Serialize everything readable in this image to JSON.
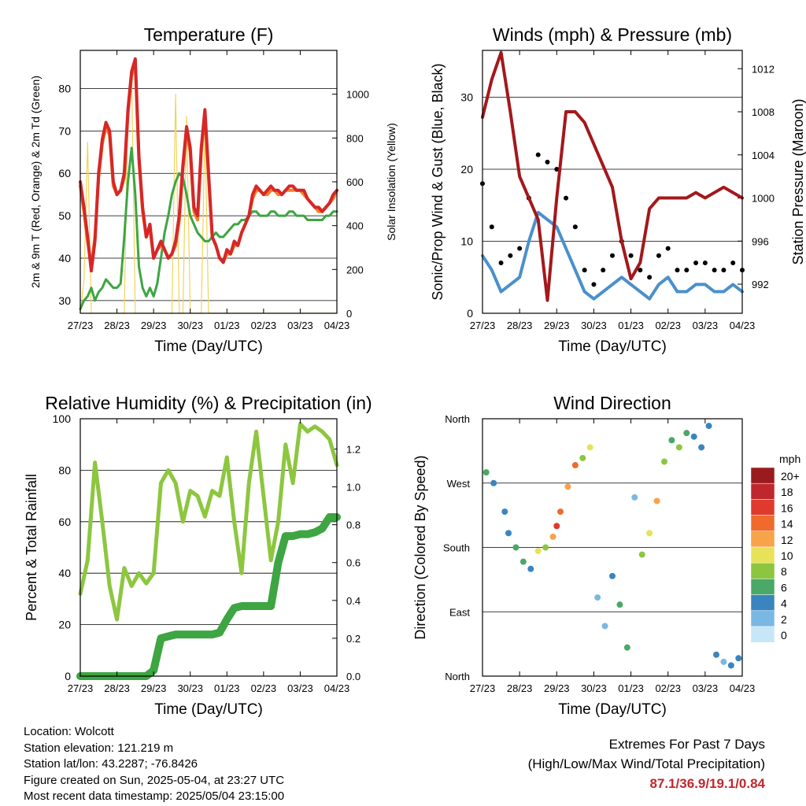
{
  "colors": {
    "temp_2m": "#d62728",
    "temp_9m": "#f0822a",
    "dewpoint": "#3da542",
    "solar": "#f2d35c",
    "wind_sonic": "#4a90cc",
    "gust": "#000000",
    "pressure": "#a3181c",
    "rh": "#8dc63f",
    "precip": "#3da542"
  },
  "x_ticks": [
    "27/23",
    "28/23",
    "29/23",
    "30/23",
    "01/23",
    "02/23",
    "03/23",
    "04/23"
  ],
  "xlabel": "Time (Day/UTC)",
  "chart_data": [
    {
      "id": "temperature",
      "type": "line",
      "title": "Temperature (F)",
      "xlabel": "Time (Day/UTC)",
      "ylabel": "2m & 9m T (Red, Orange) & 2m Td (Green)",
      "y2label": "Solar Insolation (Yellow)",
      "ylim": [
        27,
        89
      ],
      "yticks": [
        30,
        40,
        50,
        60,
        70,
        80
      ],
      "y2lim": [
        0,
        1200
      ],
      "y2ticks": [
        0,
        200,
        400,
        600,
        800,
        1000
      ],
      "x": [
        0,
        0.1,
        0.2,
        0.3,
        0.4,
        0.5,
        0.6,
        0.7,
        0.8,
        0.9,
        1.0,
        1.1,
        1.2,
        1.3,
        1.4,
        1.5,
        1.6,
        1.7,
        1.8,
        1.9,
        2.0,
        2.1,
        2.2,
        2.3,
        2.4,
        2.5,
        2.6,
        2.7,
        2.8,
        2.9,
        3.0,
        3.1,
        3.2,
        3.3,
        3.4,
        3.5,
        3.6,
        3.7,
        3.8,
        3.9,
        4.0,
        4.1,
        4.2,
        4.3,
        4.4,
        4.5,
        4.6,
        4.7,
        4.8,
        4.9,
        5.0,
        5.1,
        5.2,
        5.3,
        5.4,
        5.5,
        5.6,
        5.7,
        5.8,
        5.9,
        6.0,
        6.1,
        6.2,
        6.3,
        6.4,
        6.5,
        6.6,
        6.7,
        6.8,
        6.9,
        7.0
      ],
      "series": [
        {
          "values": [
            58,
            52,
            45,
            37,
            44,
            60,
            68,
            72,
            70,
            58,
            55,
            56,
            60,
            75,
            84,
            87,
            64,
            52,
            45,
            48,
            40,
            42,
            44,
            42,
            40,
            41,
            44,
            50,
            62,
            71,
            66,
            52,
            50,
            66,
            75,
            60,
            45,
            43,
            40,
            39,
            42,
            41,
            44,
            43,
            46,
            48,
            50,
            55,
            57,
            56,
            55,
            56,
            57,
            56,
            56,
            55,
            56,
            57,
            57,
            56,
            56,
            56,
            54,
            53,
            52,
            52,
            51,
            52,
            53,
            55,
            56
          ]
        },
        {
          "values": [
            57,
            51,
            44,
            38,
            45,
            59,
            67,
            71,
            69,
            57,
            55,
            56,
            59,
            74,
            83,
            86,
            63,
            51,
            45,
            47,
            40,
            42,
            43,
            42,
            40,
            41,
            43,
            49,
            61,
            70,
            65,
            51,
            49,
            65,
            74,
            59,
            45,
            43,
            40,
            39,
            41,
            41,
            43,
            43,
            46,
            48,
            50,
            54,
            56,
            56,
            55,
            55,
            56,
            56,
            55,
            55,
            56,
            56,
            56,
            56,
            56,
            55,
            54,
            53,
            52,
            51,
            51,
            52,
            53,
            54,
            56
          ]
        },
        {
          "values": [
            28,
            30,
            31,
            33,
            30,
            32,
            33,
            35,
            34,
            33,
            33,
            34,
            45,
            58,
            66,
            55,
            38,
            33,
            31,
            33,
            31,
            34,
            40,
            46,
            50,
            55,
            58,
            60,
            59,
            55,
            50,
            48,
            46,
            45,
            44,
            44,
            45,
            46,
            45,
            45,
            46,
            47,
            48,
            48,
            49,
            49,
            50,
            51,
            51,
            50,
            50,
            50,
            51,
            51,
            50,
            50,
            50,
            51,
            51,
            50,
            50,
            50,
            49,
            49,
            49,
            49,
            49,
            50,
            50,
            51,
            51
          ]
        },
        {
          "values": [
            0,
            150,
            780,
            0,
            0,
            0,
            0,
            0,
            0,
            0,
            0,
            0,
            0,
            950,
            1100,
            0,
            0,
            0,
            0,
            0,
            0,
            0,
            0,
            0,
            0,
            0,
            1000,
            0,
            0,
            900,
            0,
            0,
            0,
            0,
            850,
            0,
            0,
            0,
            0,
            0,
            0,
            0,
            0,
            0,
            0,
            0,
            0,
            0,
            0,
            0,
            0,
            0,
            0,
            0,
            0,
            0,
            0,
            0,
            0,
            0,
            0,
            0,
            0,
            0,
            0,
            0,
            0,
            0,
            0,
            0,
            0
          ]
        }
      ]
    },
    {
      "id": "winds",
      "type": "scatter",
      "title": "Winds (mph) & Pressure (mb)",
      "xlabel": "Time (Day/UTC)",
      "ylabel": "Sonic/Prop Wind & Gust (Blue, Black)",
      "y2label": "Station Pressure (Maroon)",
      "ylim": [
        0,
        36.5
      ],
      "yticks": [
        0,
        10,
        20,
        30
      ],
      "y2lim": [
        989.3,
        1013.7
      ],
      "y2ticks": [
        992,
        996,
        1000,
        1004,
        1008,
        1012
      ],
      "x": [
        0,
        0.25,
        0.5,
        0.75,
        1.0,
        1.25,
        1.5,
        1.75,
        2.0,
        2.25,
        2.5,
        2.75,
        3.0,
        3.25,
        3.5,
        3.75,
        4.0,
        4.25,
        4.5,
        4.75,
        5.0,
        5.25,
        5.5,
        5.75,
        6.0,
        6.25,
        6.5,
        6.75,
        7.0
      ],
      "series": [
        {
          "values": [
            8,
            6,
            3,
            4,
            5,
            10,
            14,
            13,
            12,
            9,
            6,
            3,
            2,
            3,
            4,
            5,
            4,
            3,
            2,
            4,
            5,
            3,
            3,
            4,
            4,
            3,
            3,
            4,
            3
          ]
        },
        {
          "values": [
            18,
            12,
            7,
            8,
            9,
            16,
            22,
            21,
            20,
            16,
            12,
            6,
            4,
            6,
            8,
            10,
            8,
            6,
            5,
            8,
            9,
            6,
            6,
            7,
            7,
            6,
            6,
            7,
            6
          ]
        },
        {
          "values": [
            1007.5,
            1011,
            1013.5,
            1008,
            1002,
            1000,
            998,
            990.5,
            1000,
            1008,
            1008,
            1007,
            1005,
            1003,
            1001,
            996,
            992.5,
            994,
            999,
            1000,
            1000,
            1000,
            1000,
            1000.5,
            1000,
            1000.5,
            1001,
            1000.5,
            1000
          ]
        }
      ]
    },
    {
      "id": "humidity",
      "type": "line",
      "title": "Relative Humidity (%) & Precipitation (in)",
      "xlabel": "Time (Day/UTC)",
      "ylabel": "Percent & Total Rainfall",
      "ylim": [
        0,
        100
      ],
      "yticks": [
        0,
        20,
        40,
        60,
        80,
        100
      ],
      "y2lim": [
        0,
        1.36
      ],
      "y2ticks": [
        0.0,
        0.2,
        0.4,
        0.6,
        0.8,
        1.0,
        1.2
      ],
      "x": [
        0,
        0.2,
        0.4,
        0.6,
        0.8,
        1.0,
        1.2,
        1.4,
        1.6,
        1.8,
        2.0,
        2.2,
        2.4,
        2.6,
        2.8,
        3.0,
        3.2,
        3.4,
        3.6,
        3.8,
        4.0,
        4.2,
        4.4,
        4.6,
        4.8,
        5.0,
        5.2,
        5.4,
        5.6,
        5.8,
        6.0,
        6.2,
        6.4,
        6.6,
        6.8,
        7.0
      ],
      "series": [
        {
          "values": [
            32,
            45,
            83,
            60,
            35,
            22,
            42,
            35,
            40,
            36,
            40,
            75,
            80,
            75,
            60,
            72,
            70,
            62,
            72,
            70,
            85,
            60,
            40,
            75,
            95,
            70,
            45,
            60,
            90,
            75,
            98,
            95,
            97,
            95,
            92,
            82
          ]
        },
        {
          "values": [
            0,
            0,
            0,
            0,
            0,
            0,
            0,
            0,
            0,
            0,
            0.03,
            0.2,
            0.21,
            0.22,
            0.22,
            0.22,
            0.22,
            0.22,
            0.22,
            0.23,
            0.3,
            0.36,
            0.37,
            0.37,
            0.37,
            0.37,
            0.37,
            0.6,
            0.74,
            0.74,
            0.75,
            0.75,
            0.76,
            0.78,
            0.84,
            0.84
          ]
        }
      ]
    },
    {
      "id": "direction",
      "type": "scatter",
      "title": "Wind Direction",
      "xlabel": "Time (Day/UTC)",
      "ylabel": "Direction (Colored By Speed)",
      "ylim": [
        0,
        360
      ],
      "yticks": [
        "North",
        "East",
        "South",
        "West",
        "North"
      ],
      "legend_title": "mph",
      "legend_labels": [
        "20+",
        "18",
        "16",
        "14",
        "12",
        "10",
        "8",
        "6",
        "4",
        "2",
        "0"
      ],
      "legend_colors": [
        "#9a1b1e",
        "#c0272d",
        "#df3a2e",
        "#ef6a2c",
        "#f6a34a",
        "#e8e15a",
        "#8cc63f",
        "#4aa868",
        "#3a85c0",
        "#7ab8e4",
        "#c7e6f7"
      ],
      "points": [
        {
          "x": 0.1,
          "y": 285,
          "s": 6
        },
        {
          "x": 0.3,
          "y": 270,
          "s": 4
        },
        {
          "x": 0.6,
          "y": 230,
          "s": 3
        },
        {
          "x": 0.7,
          "y": 200,
          "s": 4
        },
        {
          "x": 0.9,
          "y": 180,
          "s": 6
        },
        {
          "x": 1.1,
          "y": 160,
          "s": 6
        },
        {
          "x": 1.3,
          "y": 150,
          "s": 4
        },
        {
          "x": 1.5,
          "y": 175,
          "s": 10
        },
        {
          "x": 1.7,
          "y": 180,
          "s": 8
        },
        {
          "x": 1.9,
          "y": 195,
          "s": 12
        },
        {
          "x": 2.0,
          "y": 210,
          "s": 16
        },
        {
          "x": 2.1,
          "y": 230,
          "s": 14
        },
        {
          "x": 2.3,
          "y": 265,
          "s": 12
        },
        {
          "x": 2.5,
          "y": 295,
          "s": 14
        },
        {
          "x": 2.7,
          "y": 305,
          "s": 8
        },
        {
          "x": 2.9,
          "y": 320,
          "s": 10
        },
        {
          "x": 3.1,
          "y": 110,
          "s": 2
        },
        {
          "x": 3.3,
          "y": 70,
          "s": 2
        },
        {
          "x": 3.5,
          "y": 140,
          "s": 4
        },
        {
          "x": 3.7,
          "y": 100,
          "s": 6
        },
        {
          "x": 3.9,
          "y": 40,
          "s": 6
        },
        {
          "x": 4.1,
          "y": 250,
          "s": 2
        },
        {
          "x": 4.3,
          "y": 170,
          "s": 8
        },
        {
          "x": 4.5,
          "y": 200,
          "s": 10
        },
        {
          "x": 4.7,
          "y": 245,
          "s": 12
        },
        {
          "x": 4.9,
          "y": 300,
          "s": 8
        },
        {
          "x": 5.1,
          "y": 330,
          "s": 6
        },
        {
          "x": 5.3,
          "y": 320,
          "s": 8
        },
        {
          "x": 5.5,
          "y": 340,
          "s": 6
        },
        {
          "x": 5.7,
          "y": 335,
          "s": 4
        },
        {
          "x": 5.9,
          "y": 320,
          "s": 4
        },
        {
          "x": 6.1,
          "y": 350,
          "s": 4
        },
        {
          "x": 6.3,
          "y": 30,
          "s": 4
        },
        {
          "x": 6.5,
          "y": 20,
          "s": 2
        },
        {
          "x": 6.7,
          "y": 15,
          "s": 4
        },
        {
          "x": 6.9,
          "y": 25,
          "s": 4
        }
      ]
    }
  ],
  "info": {
    "location": "Location: Wolcott",
    "elevation": "Station elevation: 121.219 m",
    "latlon": "Station lat/lon: 43.2287; -76.8426",
    "created": "Figure created on Sun, 2025-05-04, at 23:27 UTC",
    "recent": "Most recent data timestamp: 2025/05/04 23:15:00"
  },
  "extremes": {
    "title": "Extremes For Past 7 Days",
    "subtitle": "(High/Low/Max Wind/Total Precipitation)",
    "values": "87.1/36.9/19.1/0.84"
  }
}
